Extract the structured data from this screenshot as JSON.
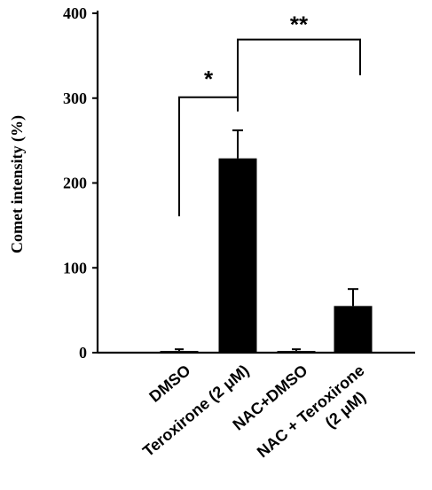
{
  "chart_data": {
    "type": "bar",
    "title": "",
    "xlabel": "",
    "ylabel": "Comet intensity (%)",
    "ylim": [
      0,
      400
    ],
    "yticks": [
      "0",
      "100",
      "200",
      "300",
      "400"
    ],
    "grid": false,
    "categories": [
      [
        "DMSO"
      ],
      [
        "Teroxirone (2 μM)"
      ],
      [
        "NAC+DMSO"
      ],
      [
        "NAC + Teroxirone",
        "(2 μM)"
      ]
    ],
    "values": [
      2,
      229,
      2,
      55
    ],
    "errors": [
      2,
      33,
      2,
      20
    ],
    "bar_color": "#000000",
    "significance": [
      {
        "label": "*",
        "from": 0,
        "to": 1,
        "level": 300
      },
      {
        "label": "**",
        "from": 1,
        "to": 3,
        "level": 368
      }
    ]
  }
}
